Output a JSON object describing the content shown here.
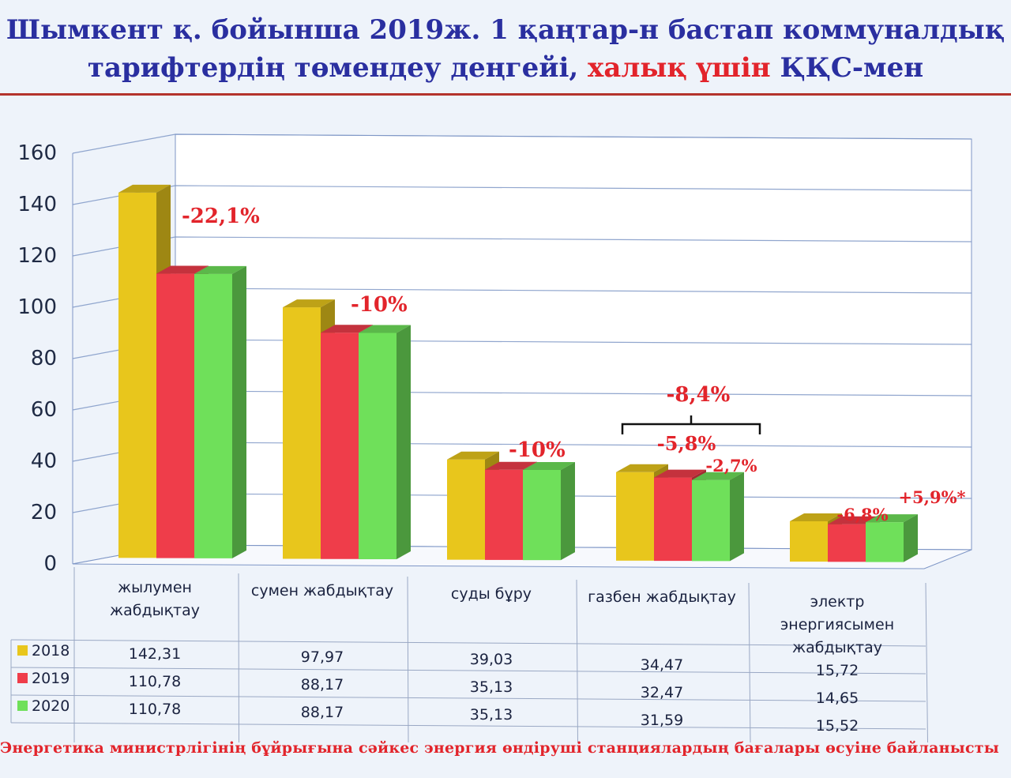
{
  "slide": {
    "title_line1": "Шымкент қ. бойынша 2019ж. 1 қаңтар-н бастап коммуналдық",
    "title_line2_blue": "тарифтердің төмендеу деңгейі,",
    "title_line2_red": "халық үшін",
    "title_line2_blue_end": "ҚҚС-мен",
    "footnote": "Энергетика министрлігінің бұйрығына сәйкес энергия өндіруші станциялардың бағалары өсуіне байланысты"
  },
  "colors": {
    "title_blue": "#2a2fa0",
    "accent_red": "#e2242b",
    "series_2018": "#e8c61c",
    "series_2019": "#ef3d4a",
    "series_2020": "#6fe05a",
    "grid": "#7e96c6"
  },
  "chart_data": {
    "type": "bar",
    "categories": [
      [
        "жылумен",
        "жабдықтау"
      ],
      [
        "сумен жабдықтау"
      ],
      [
        "суды бұру"
      ],
      [
        "газбен жабдықтау"
      ],
      [
        "электр",
        "энергиясымен",
        "жабдықтау"
      ]
    ],
    "series": [
      {
        "name": "2018",
        "values": [
          142.31,
          97.97,
          39.03,
          34.47,
          15.72
        ],
        "labels": [
          "142,31",
          "97,97",
          "39,03",
          "34,47",
          "15,72"
        ]
      },
      {
        "name": "2019",
        "values": [
          110.78,
          88.17,
          35.13,
          32.47,
          14.65
        ],
        "labels": [
          "110,78",
          "88,17",
          "35,13",
          "32,47",
          "14,65"
        ]
      },
      {
        "name": "2020",
        "values": [
          110.78,
          88.17,
          35.13,
          31.59,
          15.52
        ],
        "labels": [
          "110,78",
          "88,17",
          "35,13",
          "31,59",
          "15,52"
        ]
      }
    ],
    "yticks": [
      0,
      20,
      40,
      60,
      80,
      100,
      120,
      140,
      160
    ],
    "ylim": [
      0,
      160
    ],
    "grid": true,
    "legend": "data-table",
    "annotations": [
      {
        "category": 0,
        "text": "-22,1%"
      },
      {
        "category": 1,
        "text": "-10%"
      },
      {
        "category": 2,
        "text": "-10%"
      },
      {
        "category": 3,
        "text": "-8,4%",
        "bracket": true
      },
      {
        "category": 3,
        "text": "-5,8%"
      },
      {
        "category": 3,
        "text": "-2,7%"
      },
      {
        "category": 4,
        "text": "-6,8%"
      },
      {
        "category": 4,
        "text": "+5,9%*"
      }
    ]
  }
}
